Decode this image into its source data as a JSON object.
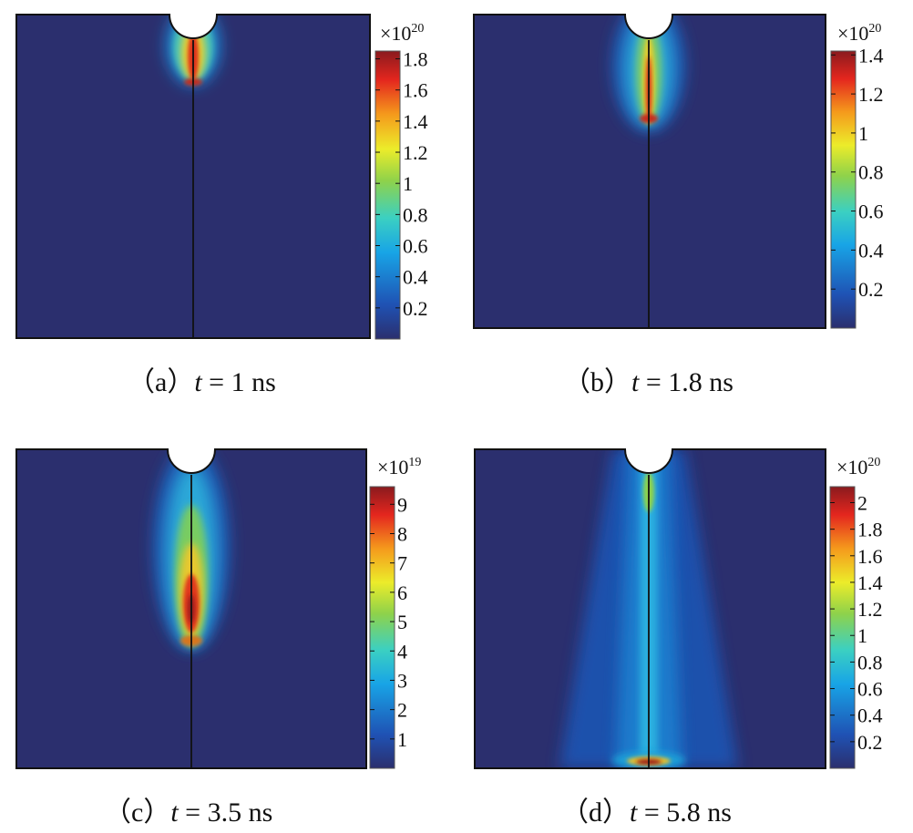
{
  "panels": [
    {
      "id": "a",
      "caption": {
        "label": "（a）",
        "var": "t",
        "eq": " = 1 ns"
      },
      "exponent": "×10",
      "power": "20",
      "ticks": [
        "1.8",
        "1.6",
        "1.4",
        "1.2",
        "1",
        "0.8",
        "0.6",
        "0.4",
        "0.2"
      ],
      "tick_values": [
        1.8,
        1.6,
        1.4,
        1.2,
        1.0,
        0.8,
        0.6,
        0.4,
        0.2
      ],
      "range": [
        0,
        1.85
      ]
    },
    {
      "id": "b",
      "caption": {
        "label": "（b）",
        "var": "t",
        "eq": " = 1.8 ns"
      },
      "exponent": "×10",
      "power": "20",
      "ticks": [
        "1.4",
        "1.2",
        "1",
        "0.8",
        "0.6",
        "0.4",
        "0.2"
      ],
      "tick_values": [
        1.4,
        1.2,
        1.0,
        0.8,
        0.6,
        0.4,
        0.2
      ],
      "range": [
        0,
        1.42
      ]
    },
    {
      "id": "c",
      "caption": {
        "label": "（c）",
        "var": "t",
        "eq": " = 3.5 ns"
      },
      "exponent": "×10",
      "power": "19",
      "ticks": [
        "9",
        "8",
        "7",
        "6",
        "5",
        "4",
        "3",
        "2",
        "1"
      ],
      "tick_values": [
        9,
        8,
        7,
        6,
        5,
        4,
        3,
        2,
        1
      ],
      "range": [
        0,
        9.6
      ]
    },
    {
      "id": "d",
      "caption": {
        "label": "（d）",
        "var": "t",
        "eq": " = 5.8 ns"
      },
      "exponent": "×10",
      "power": "20",
      "ticks": [
        "2",
        "1.8",
        "1.6",
        "1.4",
        "1.2",
        "1",
        "0.8",
        "0.6",
        "0.4",
        "0.2"
      ],
      "tick_values": [
        2.0,
        1.8,
        1.6,
        1.4,
        1.2,
        1.0,
        0.8,
        0.6,
        0.4,
        0.2
      ],
      "range": [
        0,
        2.12
      ]
    }
  ],
  "colormap": [
    "#2b2f6e",
    "#1f52b4",
    "#18a4e6",
    "#3bd0c2",
    "#8fd24a",
    "#ecec2a",
    "#f59a1c",
    "#e4261e",
    "#8a1a1e"
  ]
}
